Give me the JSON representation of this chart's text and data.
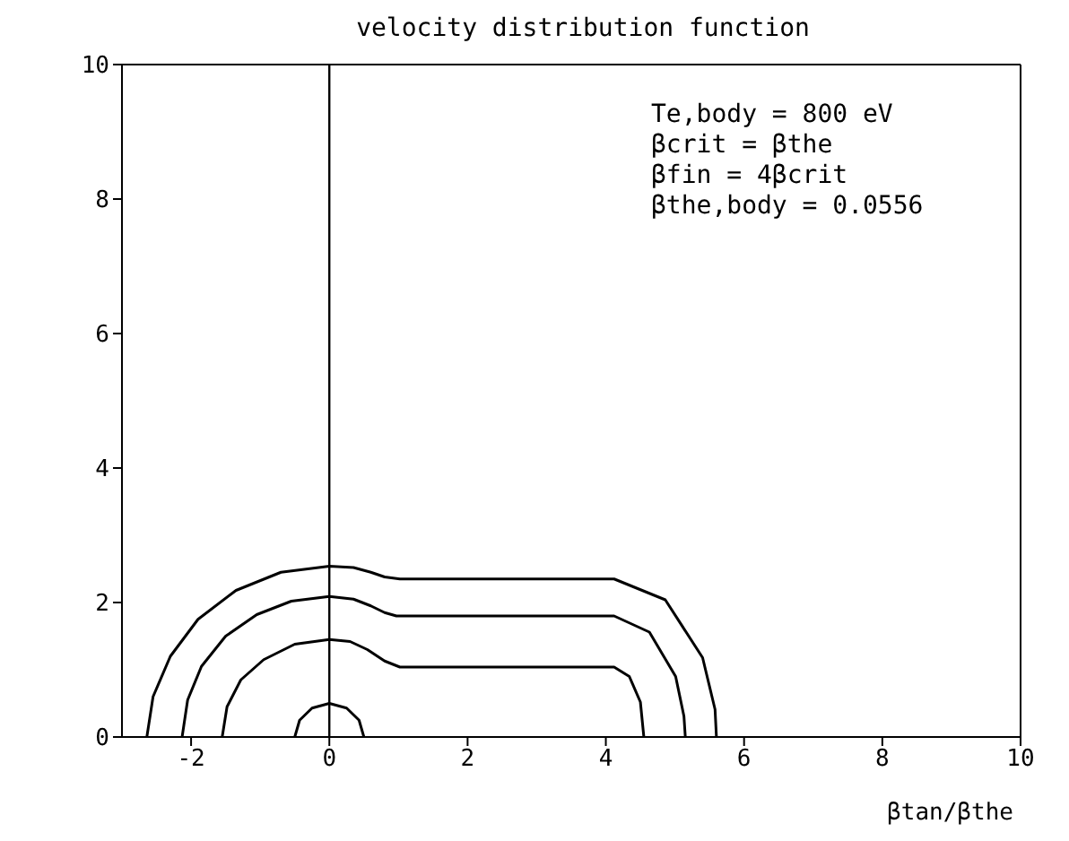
{
  "chart_data": {
    "type": "line",
    "title": "velocity distribution function",
    "xlabel": "βtan/βthe",
    "xlim": [
      -3,
      10
    ],
    "xticks": [
      -2,
      0,
      2,
      4,
      6,
      8,
      10
    ],
    "ylim": [
      0,
      10
    ],
    "yticks": [
      0,
      2,
      4,
      6,
      8,
      10
    ],
    "legend": false,
    "marker": "none",
    "line_style": "solid",
    "ref_lines": [
      {
        "axis": "x",
        "value": 0,
        "color": "#000000"
      }
    ],
    "annotations": [
      "Te,body = 800 eV",
      "βcrit = βthe",
      "βfin = 4βcrit",
      "βthe,body = 0.0556"
    ],
    "series": [
      {
        "color": "#000000",
        "x": [
          -0.5,
          -0.43,
          -0.25,
          0,
          0.25,
          0.43,
          0.5
        ],
        "values": [
          0,
          0.25,
          0.43,
          0.5,
          0.43,
          0.25,
          0
        ]
      },
      {
        "color": "#000000",
        "x": [
          -1.55,
          -1.48,
          -1.28,
          -0.95,
          -0.5,
          0,
          0.3,
          0.55,
          0.8,
          1.02,
          4.12,
          4.34,
          4.5,
          4.55
        ],
        "values": [
          0,
          0.45,
          0.85,
          1.15,
          1.38,
          1.45,
          1.42,
          1.3,
          1.13,
          1.04,
          1.04,
          0.9,
          0.52,
          0
        ]
      },
      {
        "color": "#000000",
        "x": [
          -2.13,
          -2.05,
          -1.85,
          -1.5,
          -1.05,
          -0.55,
          0,
          0.35,
          0.6,
          0.8,
          0.97,
          4.12,
          4.63,
          5.01,
          5.13,
          5.15
        ],
        "values": [
          0,
          0.55,
          1.05,
          1.5,
          1.82,
          2.02,
          2.09,
          2.05,
          1.95,
          1.85,
          1.8,
          1.8,
          1.56,
          0.9,
          0.31,
          0
        ]
      },
      {
        "color": "#000000",
        "x": [
          -2.64,
          -2.55,
          -2.3,
          -1.9,
          -1.35,
          -0.7,
          0,
          0.35,
          0.6,
          0.8,
          1.02,
          4.12,
          4.86,
          5.4,
          5.58,
          5.6
        ],
        "values": [
          0,
          0.6,
          1.2,
          1.75,
          2.18,
          2.45,
          2.54,
          2.52,
          2.45,
          2.38,
          2.35,
          2.35,
          2.04,
          1.18,
          0.41,
          0
        ]
      }
    ]
  }
}
